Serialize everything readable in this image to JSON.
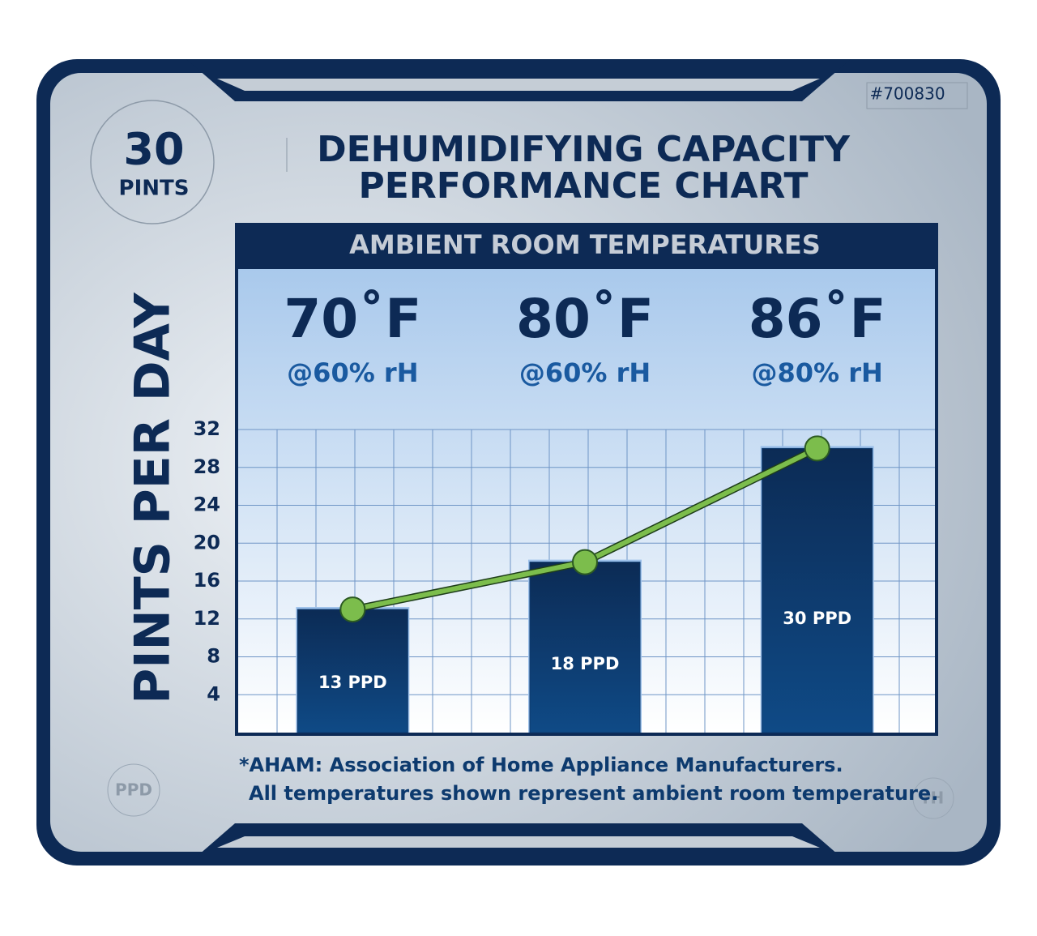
{
  "badge": {
    "number": "30",
    "unit": "PINTS"
  },
  "code": "#700830",
  "corner_left": "PPD",
  "corner_right": "rH",
  "footnote": [
    "*AHAM: Association of Home Appliance Manufacturers.",
    "All temperatures shown represent ambient room temperature."
  ],
  "chart_data": {
    "type": "bar",
    "title": [
      "DEHUMIDIFYING CAPACITY",
      "PERFORMANCE CHART"
    ],
    "header": "AMBIENT ROOM TEMPERATURES",
    "y_label": "PINTS PER DAY",
    "categories": [
      "70˚F",
      "80˚F",
      "86˚F"
    ],
    "category_subtitles": [
      "@60% rH",
      "@60% rH",
      "@80% rH"
    ],
    "values": [
      13,
      18,
      30
    ],
    "value_labels": [
      "13 PPD",
      "18 PPD",
      "30 PPD"
    ],
    "color": "#0d3a6e",
    "line_color": "#7cbd4c",
    "trend_line": true,
    "ylim": [
      0,
      32
    ],
    "yticks": [
      4,
      8,
      12,
      16,
      20,
      24,
      28,
      32
    ],
    "grid": true
  }
}
